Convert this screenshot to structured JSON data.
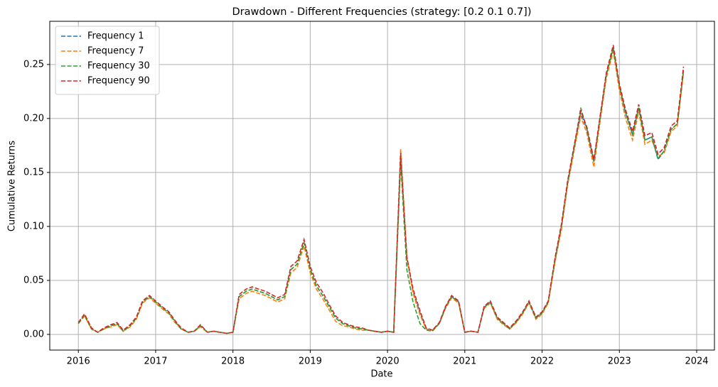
{
  "chart_data": {
    "type": "line",
    "title": "Drawdown - Different Frequencies (strategy: [0.2 0.1 0.7])",
    "xlabel": "Date",
    "ylabel": "Cumulative Returns",
    "x": [
      2016,
      2016.08,
      2016.17,
      2016.25,
      2016.33,
      2016.42,
      2016.5,
      2016.58,
      2016.67,
      2016.75,
      2016.83,
      2016.92,
      2017,
      2017.08,
      2017.17,
      2017.25,
      2017.33,
      2017.42,
      2017.5,
      2017.58,
      2017.67,
      2017.75,
      2017.83,
      2017.92,
      2018,
      2018.08,
      2018.17,
      2018.25,
      2018.33,
      2018.42,
      2018.5,
      2018.58,
      2018.67,
      2018.75,
      2018.83,
      2018.92,
      2019,
      2019.08,
      2019.17,
      2019.25,
      2019.33,
      2019.42,
      2019.5,
      2019.58,
      2019.67,
      2019.75,
      2019.83,
      2019.92,
      2020,
      2020.08,
      2020.17,
      2020.25,
      2020.33,
      2020.42,
      2020.5,
      2020.58,
      2020.67,
      2020.75,
      2020.83,
      2020.92,
      2021,
      2021.08,
      2021.17,
      2021.25,
      2021.33,
      2021.42,
      2021.5,
      2021.58,
      2021.67,
      2021.75,
      2021.83,
      2021.92,
      2022,
      2022.08,
      2022.17,
      2022.25,
      2022.33,
      2022.42,
      2022.5,
      2022.58,
      2022.67,
      2022.75,
      2022.83,
      2022.92,
      2023,
      2023.08,
      2023.17,
      2023.25,
      2023.33,
      2023.42,
      2023.5,
      2023.58,
      2023.67,
      2023.75,
      2023.83
    ],
    "series": [
      {
        "name": "Frequency 1",
        "color": "#1f77b4",
        "values": [
          0.01,
          0.018,
          0.005,
          0.002,
          0.005,
          0.008,
          0.01,
          0.003,
          0.008,
          0.015,
          0.03,
          0.035,
          0.03,
          0.025,
          0.02,
          0.012,
          0.005,
          0.002,
          0.003,
          0.008,
          0.002,
          0.003,
          0.002,
          0.001,
          0.002,
          0.035,
          0.04,
          0.042,
          0.04,
          0.038,
          0.035,
          0.032,
          0.035,
          0.06,
          0.065,
          0.085,
          0.06,
          0.045,
          0.035,
          0.025,
          0.015,
          0.01,
          0.008,
          0.006,
          0.005,
          0.004,
          0.003,
          0.002,
          0.003,
          0.002,
          0.165,
          0.07,
          0.04,
          0.02,
          0.005,
          0.004,
          0.01,
          0.025,
          0.035,
          0.03,
          0.002,
          0.003,
          0.002,
          0.025,
          0.03,
          0.015,
          0.01,
          0.005,
          0.012,
          0.02,
          0.03,
          0.015,
          0.02,
          0.03,
          0.07,
          0.1,
          0.14,
          0.175,
          0.205,
          0.19,
          0.16,
          0.2,
          0.24,
          0.265,
          0.23,
          0.205,
          0.185,
          0.21,
          0.18,
          0.183,
          0.162,
          0.17,
          0.19,
          0.195,
          0.245
        ]
      },
      {
        "name": "Frequency 7",
        "color": "#ff7f0e",
        "values": [
          0.01,
          0.017,
          0.005,
          0.002,
          0.005,
          0.007,
          0.009,
          0.003,
          0.007,
          0.014,
          0.029,
          0.034,
          0.029,
          0.024,
          0.019,
          0.011,
          0.005,
          0.002,
          0.003,
          0.007,
          0.002,
          0.003,
          0.002,
          0.001,
          0.002,
          0.033,
          0.038,
          0.04,
          0.038,
          0.036,
          0.033,
          0.03,
          0.033,
          0.057,
          0.062,
          0.082,
          0.057,
          0.042,
          0.032,
          0.022,
          0.012,
          0.008,
          0.007,
          0.005,
          0.004,
          0.004,
          0.003,
          0.002,
          0.003,
          0.002,
          0.172,
          0.072,
          0.038,
          0.018,
          0.005,
          0.004,
          0.01,
          0.024,
          0.034,
          0.029,
          0.002,
          0.003,
          0.002,
          0.024,
          0.029,
          0.014,
          0.009,
          0.005,
          0.011,
          0.019,
          0.029,
          0.014,
          0.019,
          0.029,
          0.068,
          0.097,
          0.138,
          0.172,
          0.202,
          0.186,
          0.155,
          0.197,
          0.237,
          0.262,
          0.226,
          0.2,
          0.18,
          0.206,
          0.176,
          0.18,
          0.165,
          0.168,
          0.188,
          0.193,
          0.242
        ]
      },
      {
        "name": "Frequency 30",
        "color": "#2ca02c",
        "values": [
          0.01,
          0.018,
          0.005,
          0.002,
          0.005,
          0.008,
          0.01,
          0.003,
          0.008,
          0.015,
          0.03,
          0.035,
          0.03,
          0.025,
          0.02,
          0.012,
          0.005,
          0.002,
          0.003,
          0.008,
          0.002,
          0.003,
          0.002,
          0.001,
          0.002,
          0.035,
          0.04,
          0.042,
          0.04,
          0.038,
          0.035,
          0.032,
          0.035,
          0.06,
          0.065,
          0.085,
          0.06,
          0.045,
          0.035,
          0.025,
          0.015,
          0.01,
          0.008,
          0.006,
          0.005,
          0.004,
          0.003,
          0.002,
          0.003,
          0.002,
          0.16,
          0.06,
          0.03,
          0.01,
          0.004,
          0.003,
          0.01,
          0.025,
          0.035,
          0.03,
          0.002,
          0.003,
          0.002,
          0.025,
          0.03,
          0.015,
          0.01,
          0.005,
          0.012,
          0.02,
          0.03,
          0.015,
          0.02,
          0.03,
          0.07,
          0.1,
          0.14,
          0.175,
          0.21,
          0.19,
          0.16,
          0.2,
          0.24,
          0.265,
          0.23,
          0.205,
          0.185,
          0.21,
          0.18,
          0.183,
          0.163,
          0.17,
          0.19,
          0.195,
          0.245
        ]
      },
      {
        "name": "Frequency 90",
        "color": "#d62728",
        "values": [
          0.011,
          0.019,
          0.006,
          0.002,
          0.006,
          0.009,
          0.011,
          0.004,
          0.009,
          0.016,
          0.031,
          0.036,
          0.031,
          0.026,
          0.021,
          0.013,
          0.006,
          0.002,
          0.003,
          0.009,
          0.002,
          0.003,
          0.002,
          0.001,
          0.002,
          0.037,
          0.042,
          0.044,
          0.042,
          0.04,
          0.037,
          0.034,
          0.037,
          0.063,
          0.068,
          0.088,
          0.063,
          0.048,
          0.038,
          0.027,
          0.017,
          0.011,
          0.009,
          0.007,
          0.006,
          0.004,
          0.003,
          0.002,
          0.003,
          0.002,
          0.168,
          0.072,
          0.042,
          0.022,
          0.006,
          0.004,
          0.011,
          0.026,
          0.036,
          0.031,
          0.002,
          0.003,
          0.002,
          0.026,
          0.031,
          0.016,
          0.011,
          0.006,
          0.013,
          0.021,
          0.031,
          0.016,
          0.021,
          0.031,
          0.072,
          0.102,
          0.142,
          0.177,
          0.207,
          0.192,
          0.162,
          0.202,
          0.242,
          0.268,
          0.232,
          0.208,
          0.188,
          0.213,
          0.184,
          0.187,
          0.167,
          0.173,
          0.193,
          0.198,
          0.248
        ]
      }
    ],
    "xlim": [
      2015.63,
      2024.23
    ],
    "xticks": [
      2016,
      2017,
      2018,
      2019,
      2020,
      2021,
      2022,
      2023,
      2024
    ],
    "ylim": [
      -0.0145,
      0.29
    ],
    "yticks": [
      {
        "value": 0,
        "label": "0.00"
      },
      {
        "value": 0.05,
        "label": "0.05"
      },
      {
        "value": 0.1,
        "label": "0.10"
      },
      {
        "value": 0.15,
        "label": "0.15"
      },
      {
        "value": 0.2,
        "label": "0.20"
      },
      {
        "value": 0.25,
        "label": "0.25"
      }
    ],
    "grid": true,
    "legend": "upper-left"
  }
}
